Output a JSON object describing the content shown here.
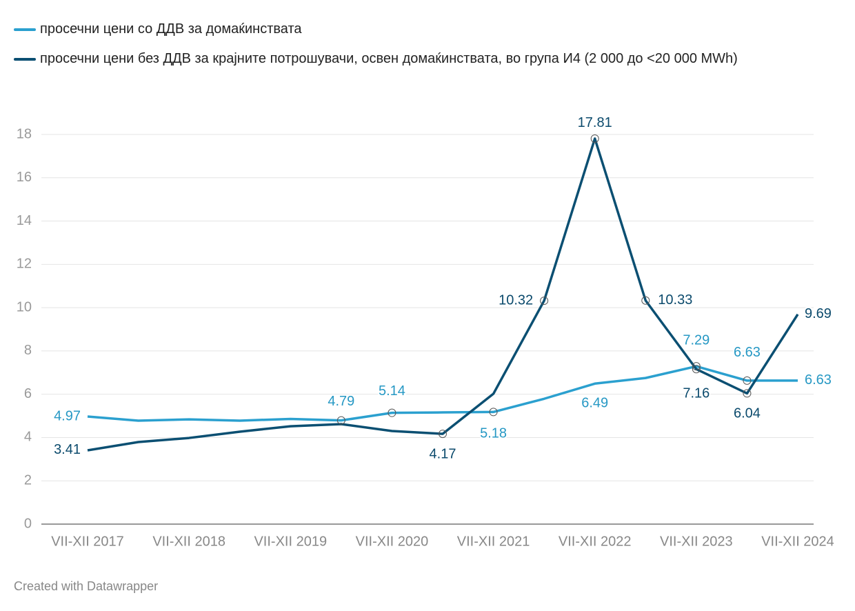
{
  "chart_data": {
    "type": "line",
    "categories": [
      "VII-XII 2017",
      null,
      "VII-XII 2018",
      null,
      "VII-XII 2019",
      null,
      "VII-XII 2020",
      null,
      "VII-XII 2021",
      null,
      "VII-XII 2022",
      null,
      "VII-XII 2023",
      null,
      "VII-XII 2024"
    ],
    "series": [
      {
        "name": "просечни цени со ДДВ за домаќинствата",
        "color": "#2ba0cf",
        "values": [
          4.97,
          4.78,
          4.84,
          4.78,
          4.86,
          4.79,
          5.14,
          5.16,
          5.18,
          5.79,
          6.49,
          6.75,
          7.29,
          6.63,
          6.63
        ]
      },
      {
        "name": "просечни цени без ДДВ за крајните потрошувачи, освен домаќинствата, во група И4 (2 000 до <20 000 MWh)",
        "color": "#0b4f72",
        "values": [
          3.41,
          3.79,
          3.98,
          4.27,
          4.52,
          4.62,
          4.3,
          4.17,
          6.02,
          10.32,
          17.81,
          10.33,
          7.16,
          6.04,
          9.69
        ]
      }
    ],
    "ylim": [
      0,
      18
    ],
    "yticks": [
      0,
      2,
      4,
      6,
      8,
      10,
      12,
      14,
      16,
      18
    ],
    "grid": true,
    "footer": "Created with Datawrapper"
  }
}
